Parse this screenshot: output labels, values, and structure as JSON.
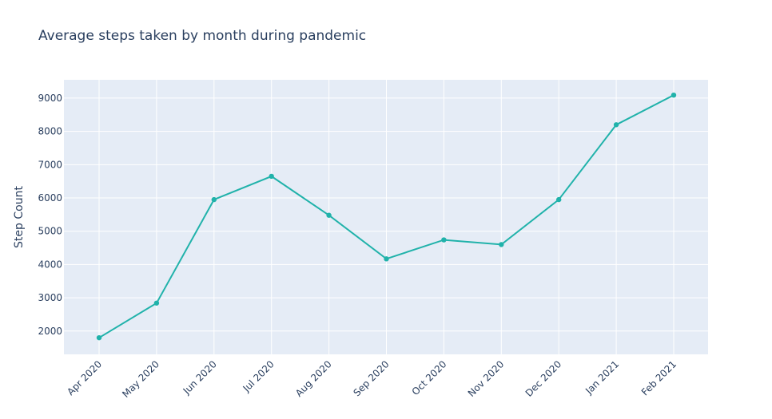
{
  "chart_data": {
    "type": "line",
    "title": "Average steps taken by month during pandemic",
    "xlabel": "",
    "ylabel": "Step Count",
    "categories": [
      "Apr 2020",
      "May 2020",
      "Jun 2020",
      "Jul 2020",
      "Aug 2020",
      "Sep 2020",
      "Oct 2020",
      "Nov 2020",
      "Dec 2020",
      "Jan 2021",
      "Feb 2021"
    ],
    "series": [
      {
        "values": [
          1800,
          2840,
          5950,
          6650,
          5480,
          4170,
          4740,
          4600,
          5950,
          8200,
          9090
        ]
      }
    ],
    "ylim": [
      1300,
      9550
    ],
    "yticks": [
      2000,
      3000,
      4000,
      5000,
      6000,
      7000,
      8000,
      9000
    ],
    "grid": true,
    "colors": {
      "line": "#20b2aa",
      "plot_bg": "#e5ecf6",
      "grid": "#ffffff",
      "text": "#2a3f5f"
    }
  }
}
